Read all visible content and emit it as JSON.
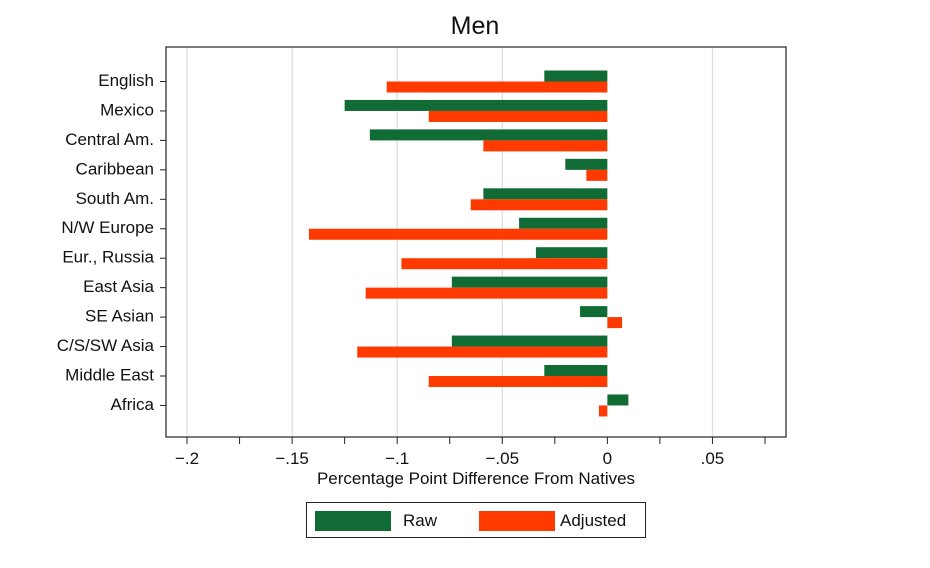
{
  "chart_data": {
    "type": "bar",
    "orientation": "horizontal",
    "title": "Men",
    "xlabel": "Percentage Point Difference From Natives",
    "ylabel": "",
    "xlim": [
      -0.21,
      0.085
    ],
    "xticks": [
      -0.2,
      -0.15,
      -0.1,
      -0.05,
      0,
      0.05
    ],
    "xtick_labels": [
      "−.2",
      "−.15",
      "−.1",
      "−.05",
      "0",
      ".05"
    ],
    "grid": true,
    "legend_position": "bottom",
    "categories": [
      "English",
      "Mexico",
      "Central Am.",
      "Caribbean",
      "South Am.",
      "N/W Europe",
      "Eur., Russia",
      "East Asia",
      "SE Asian",
      "C/S/SW Asia",
      "Middle East",
      "Africa"
    ],
    "series": [
      {
        "name": "Raw",
        "color": "#116B35",
        "values": [
          -0.03,
          -0.125,
          -0.113,
          -0.02,
          -0.059,
          -0.042,
          -0.034,
          -0.074,
          -0.013,
          -0.074,
          -0.03,
          0.01
        ]
      },
      {
        "name": "Adjusted",
        "color": "#FF3A00",
        "values": [
          -0.105,
          -0.085,
          -0.059,
          -0.01,
          -0.065,
          -0.142,
          -0.098,
          -0.115,
          0.007,
          -0.119,
          -0.085,
          -0.004
        ]
      }
    ]
  }
}
